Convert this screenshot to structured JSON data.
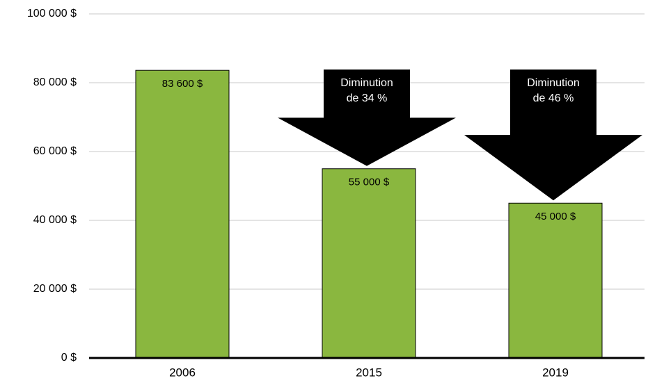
{
  "chart_data": {
    "type": "bar",
    "categories": [
      "2006",
      "2015",
      "2019"
    ],
    "values": [
      83600,
      55000,
      45000
    ],
    "value_labels": [
      "83 600 $",
      "55 000 $",
      "45 000 $"
    ],
    "color": "#8ab73f",
    "annotations": [
      null,
      [
        "Diminution",
        "de 34 %"
      ],
      [
        "Diminution",
        "de 46 %"
      ]
    ],
    "ylim": [
      0,
      100000
    ],
    "yticks": [
      {
        "value": 0,
        "label": "0 $"
      },
      {
        "value": 20000,
        "label": "20 000 $"
      },
      {
        "value": 40000,
        "label": "40 000 $"
      },
      {
        "value": 60000,
        "label": "60 000 $"
      },
      {
        "value": 80000,
        "label": "80 000 $"
      },
      {
        "value": 100000,
        "label": "100 000 $"
      }
    ],
    "grid": true
  }
}
